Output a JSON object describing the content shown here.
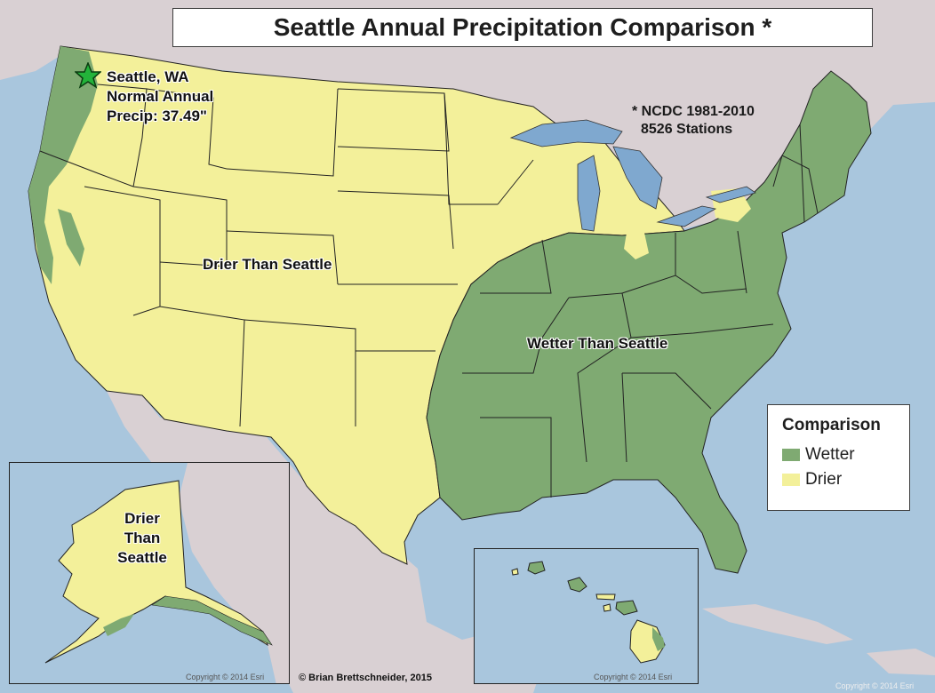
{
  "title": "Seattle Annual Precipitation Comparison *",
  "city_label": {
    "line1": "Seattle, WA",
    "line2": "Normal Annual",
    "line3": "Precip: 37.49\""
  },
  "note": {
    "line1": "* NCDC 1981-2010",
    "line2": "8526 Stations"
  },
  "region_labels": {
    "drier": "Drier Than Seattle",
    "wetter": "Wetter Than Seattle",
    "alaska_line1": "Drier",
    "alaska_line2": "Than",
    "alaska_line3": "Seattle"
  },
  "legend": {
    "title": "Comparison",
    "items": [
      {
        "label": "Wetter",
        "color": "#7faa72"
      },
      {
        "label": "Drier",
        "color": "#f3f09a"
      }
    ]
  },
  "colors": {
    "water": "#a9c6dd",
    "land_other": "#d9d0d3",
    "wetter": "#7faa72",
    "drier": "#f3f09a",
    "lakes": "#7fa8cf",
    "marker": "#23b33a"
  },
  "credits": {
    "author": "© Brian Brettschneider, 2015",
    "esri_alaska": "Copyright © 2014 Esri",
    "esri_hawaii": "Copyright © 2014 Esri",
    "esri_main": "Copyright © 2014 Esri"
  }
}
